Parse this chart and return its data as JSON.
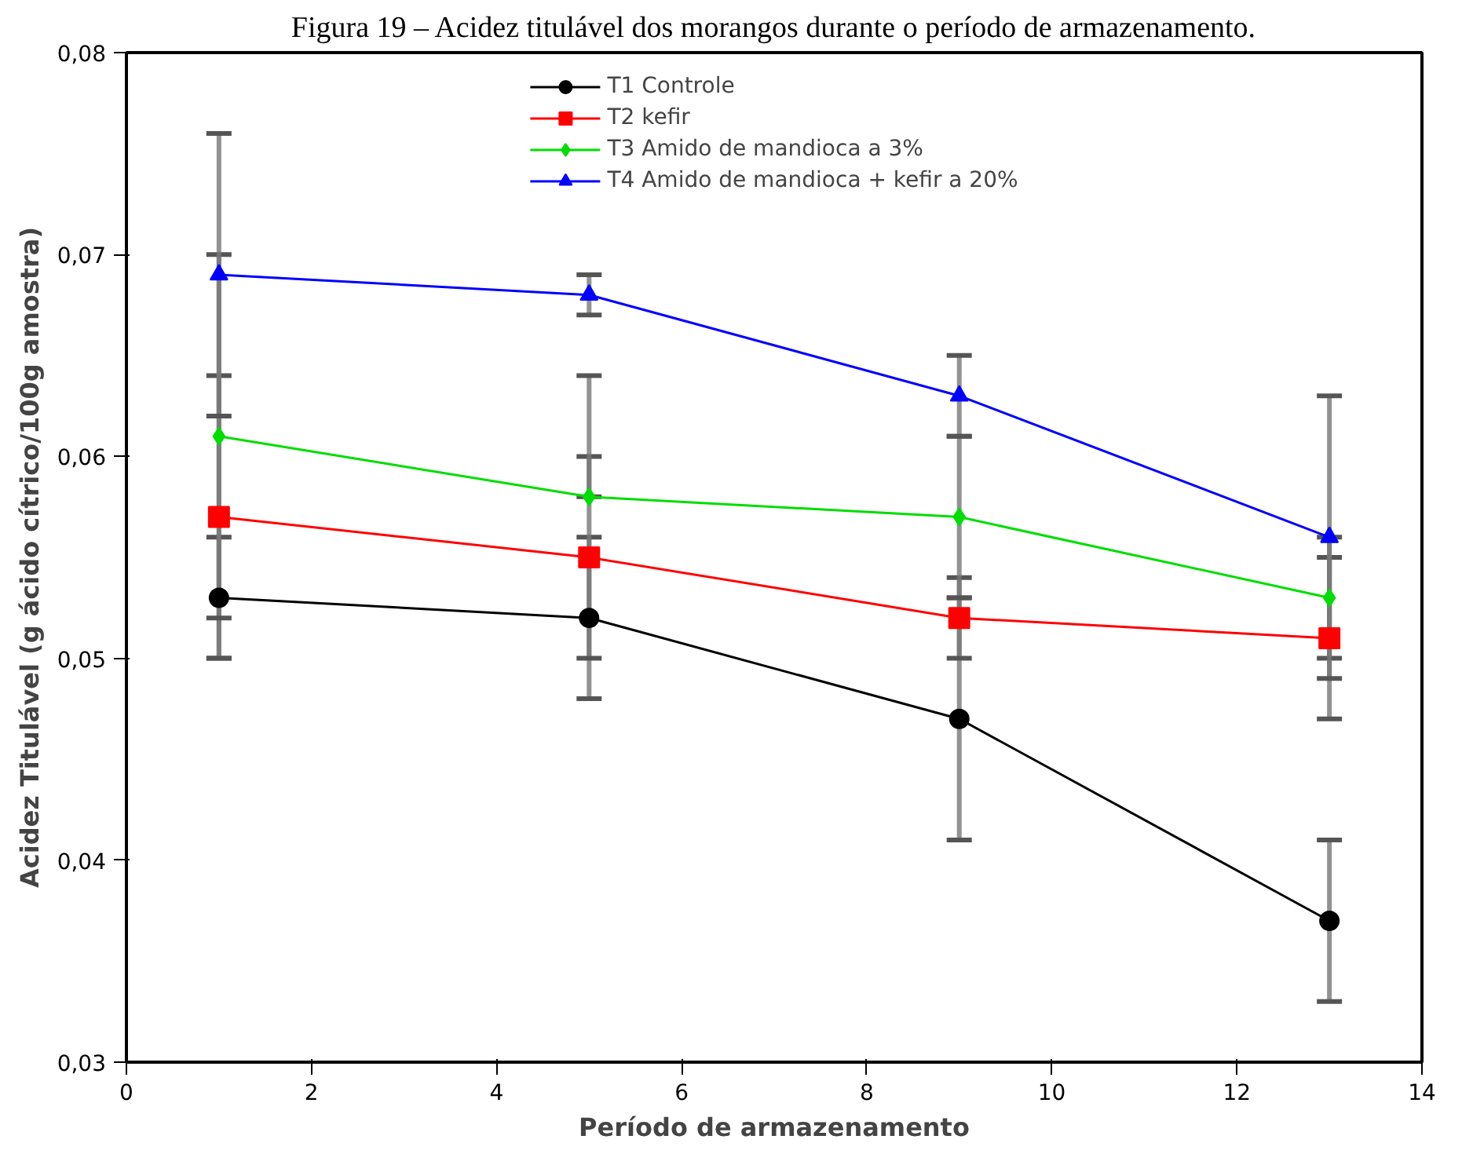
{
  "chart_data": {
    "type": "line",
    "title": "Figura 19 – Acidez titulável dos morangos durante o período de armazenamento.",
    "xlabel": "Período de armazenamento",
    "ylabel": "Acidez Titulável (g ácido cítrico/100g amostra)",
    "x": [
      1,
      5,
      9,
      13
    ],
    "xlim": [
      0,
      14
    ],
    "xticks": [
      0,
      2,
      4,
      6,
      8,
      10,
      12,
      14
    ],
    "ylim": [
      0.03,
      0.08
    ],
    "yticks": [
      {
        "value": 0.03,
        "label": "0,03"
      },
      {
        "value": 0.04,
        "label": "0,04"
      },
      {
        "value": 0.05,
        "label": "0,05"
      },
      {
        "value": 0.06,
        "label": "0,06"
      },
      {
        "value": 0.07,
        "label": "0,07"
      },
      {
        "value": 0.08,
        "label": "0,08"
      }
    ],
    "grid": false,
    "legend": "top",
    "line_style": "solid",
    "series": [
      {
        "name": "T1 Controle",
        "color": "#000000",
        "marker": "circle",
        "values": [
          0.053,
          0.052,
          0.047,
          0.037
        ],
        "errors": [
          [
            0.05,
            0.056
          ],
          [
            0.048,
            0.056
          ],
          [
            0.041,
            0.053
          ],
          [
            0.033,
            0.041
          ]
        ]
      },
      {
        "name": "T2 kefir",
        "color": "#ff0000",
        "marker": "square",
        "values": [
          0.057,
          0.055,
          0.052,
          0.051
        ],
        "errors": [
          [
            0.05,
            0.064
          ],
          [
            0.05,
            0.06
          ],
          [
            0.05,
            0.054
          ],
          [
            0.047,
            0.055
          ]
        ]
      },
      {
        "name": "T3 Amido de mandioca a 3%",
        "color": "#00dd00",
        "marker": "diamond",
        "values": [
          0.061,
          0.058,
          0.057,
          0.053
        ],
        "errors": [
          [
            0.052,
            0.07
          ],
          [
            0.058,
            0.064
          ],
          [
            0.053,
            0.061
          ],
          [
            0.05,
            0.056
          ]
        ]
      },
      {
        "name": "T4 Amido de mandioca + kefir a 20%",
        "color": "#0000ff",
        "marker": "triangle",
        "values": [
          0.069,
          0.068,
          0.063,
          0.056
        ],
        "errors": [
          [
            0.062,
            0.076
          ],
          [
            0.067,
            0.069
          ],
          [
            0.061,
            0.065
          ],
          [
            0.049,
            0.063
          ]
        ]
      }
    ]
  }
}
